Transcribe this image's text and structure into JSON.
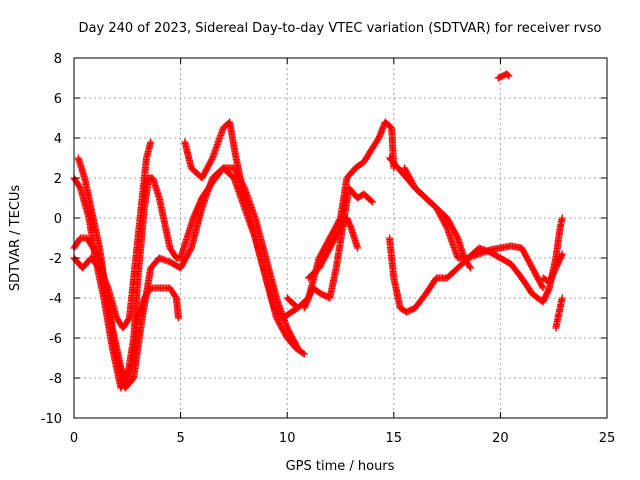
{
  "chart_data": {
    "type": "scatter",
    "title": "Day 240 of 2023, Sidereal Day-to-day VTEC variation (SDTVAR) for receiver rvso",
    "xlabel": "GPS time / hours",
    "ylabel": "SDTVAR / TECUs",
    "xlim": [
      0,
      25
    ],
    "ylim": [
      -10,
      8
    ],
    "xticks": [
      0,
      5,
      10,
      15,
      20,
      25
    ],
    "yticks": [
      -10,
      -8,
      -6,
      -4,
      -2,
      0,
      2,
      4,
      6,
      8
    ],
    "grid": true,
    "legend": "none",
    "marker": "+",
    "series": [
      {
        "name": "track-1",
        "color": "#ff0000",
        "x": [
          0.0,
          0.3,
          0.7,
          1.0,
          1.4,
          1.8,
          2.2,
          2.5,
          2.8,
          3.0,
          3.3,
          3.5,
          3.7,
          4.0,
          4.3,
          4.5,
          4.8,
          5.0,
          5.3,
          5.6,
          6.0,
          6.5,
          7.0,
          7.5,
          8.0,
          8.5,
          9.0,
          9.4,
          9.8,
          10.2,
          10.5
        ],
        "y": [
          2.0,
          1.5,
          0.0,
          -2.0,
          -4.0,
          -6.5,
          -8.5,
          -8.0,
          -6.0,
          -3.0,
          0.5,
          2.0,
          2.0,
          1.0,
          -0.5,
          -1.5,
          -2.0,
          -2.0,
          -1.0,
          0.0,
          1.0,
          1.8,
          2.5,
          2.0,
          0.5,
          -1.0,
          -3.0,
          -4.5,
          -5.0,
          -4.7,
          -4.5
        ]
      },
      {
        "name": "track-2",
        "color": "#ff0000",
        "x": [
          0.2,
          0.5,
          0.8,
          1.2,
          1.6,
          2.0,
          2.4,
          2.8,
          3.2,
          3.6,
          4.0,
          4.5,
          5.0,
          5.5,
          6.0,
          6.5,
          7.0,
          7.5,
          8.0,
          8.5,
          9.0,
          9.5,
          10.0,
          10.5
        ],
        "y": [
          3.0,
          2.0,
          0.5,
          -1.5,
          -4.5,
          -7.0,
          -8.5,
          -8.0,
          -5.0,
          -2.5,
          -2.0,
          -2.2,
          -2.5,
          -1.5,
          0.5,
          2.0,
          2.5,
          2.5,
          1.5,
          0.0,
          -2.0,
          -4.0,
          -5.5,
          -6.5
        ]
      },
      {
        "name": "track-3",
        "color": "#ff0000",
        "x": [
          0.0,
          0.3,
          0.6,
          0.9,
          1.2,
          1.5,
          1.8,
          2.0,
          2.2,
          2.5,
          2.8,
          3.0,
          3.3,
          3.6,
          3.9,
          4.2,
          4.5,
          4.8,
          4.9
        ],
        "y": [
          -1.5,
          -1.0,
          -1.0,
          -1.5,
          -2.0,
          -3.5,
          -5.5,
          -6.5,
          -7.5,
          -8.0,
          -7.0,
          -5.0,
          -4.0,
          -3.5,
          -3.5,
          -3.5,
          -3.5,
          -4.0,
          -5.0
        ]
      },
      {
        "name": "track-4",
        "color": "#ff0000",
        "x": [
          0.0,
          0.4,
          0.8,
          1.2,
          1.6,
          2.0,
          2.3,
          2.6,
          2.8,
          3.0,
          3.2,
          3.4,
          3.6
        ],
        "y": [
          -2.0,
          -2.5,
          -2.0,
          -2.5,
          -3.5,
          -5.0,
          -5.5,
          -5.0,
          -3.0,
          -1.0,
          1.0,
          3.0,
          3.8
        ]
      },
      {
        "name": "track-5",
        "color": "#ff0000",
        "x": [
          5.2,
          5.5,
          6.0,
          6.5,
          7.0,
          7.3,
          7.6,
          8.0,
          8.5,
          9.0,
          9.5,
          10.0,
          10.4,
          10.8
        ],
        "y": [
          3.8,
          2.5,
          2.0,
          3.0,
          4.5,
          4.8,
          3.0,
          1.0,
          -1.0,
          -3.0,
          -5.0,
          -6.0,
          -6.5,
          -6.8
        ]
      },
      {
        "name": "track-6",
        "color": "#ff0000",
        "x": [
          10.0,
          10.5,
          11.0,
          11.5,
          12.0,
          12.5,
          12.8,
          13.2,
          13.6,
          14.0,
          14.3,
          14.6,
          14.9,
          15.0
        ],
        "y": [
          -4.0,
          -4.5,
          -4.0,
          -2.0,
          -1.0,
          0.0,
          2.0,
          2.5,
          2.8,
          3.5,
          4.0,
          4.8,
          4.5,
          2.5
        ]
      },
      {
        "name": "track-7",
        "color": "#ff0000",
        "x": [
          10.8,
          11.2,
          11.6,
          12.0,
          12.3,
          12.6,
          12.9,
          13.3,
          13.6,
          14.0
        ],
        "y": [
          -4.5,
          -3.5,
          -3.8,
          -4.0,
          -2.5,
          -0.5,
          1.5,
          1.0,
          1.2,
          0.8
        ]
      },
      {
        "name": "track-8",
        "color": "#ff0000",
        "x": [
          11.0,
          11.5,
          12.0,
          12.5,
          12.8,
          13.0,
          13.3
        ],
        "y": [
          -3.0,
          -2.5,
          -1.5,
          -0.5,
          0.0,
          -0.5,
          -1.5
        ]
      },
      {
        "name": "track-9",
        "color": "#ff0000",
        "x": [
          14.8,
          15.2,
          15.6,
          16.0,
          16.5,
          17.0,
          17.5,
          18.0,
          18.5,
          19.0,
          19.5,
          20.0,
          20.5,
          21.0,
          21.5,
          22.0,
          22.3,
          22.6,
          22.8,
          22.9
        ],
        "y": [
          3.0,
          2.5,
          2.0,
          1.5,
          1.0,
          0.5,
          -0.5,
          -2.0,
          -2.0,
          -1.5,
          -1.7,
          -2.0,
          -2.3,
          -3.0,
          -3.8,
          -4.2,
          -3.5,
          -2.0,
          -0.5,
          0.0
        ]
      },
      {
        "name": "track-10",
        "color": "#ff0000",
        "x": [
          14.8,
          15.0,
          15.3,
          15.6,
          16.0,
          16.5,
          17.0,
          17.5,
          18.0,
          18.5,
          19.0,
          19.5,
          20.0,
          20.5,
          21.0,
          21.5,
          22.0
        ],
        "y": [
          -1.0,
          -3.0,
          -4.5,
          -4.7,
          -4.5,
          -3.8,
          -3.0,
          -3.0,
          -2.5,
          -2.0,
          -1.8,
          -1.6,
          -1.5,
          -1.4,
          -1.5,
          -2.5,
          -3.5
        ]
      },
      {
        "name": "track-11",
        "color": "#ff0000",
        "x": [
          15.5,
          16.0,
          16.5,
          17.0,
          17.5,
          18.0,
          18.3,
          18.6
        ],
        "y": [
          2.5,
          1.5,
          1.0,
          0.5,
          0.0,
          -1.0,
          -2.0,
          -2.5
        ]
      },
      {
        "name": "track-12",
        "color": "#ff0000",
        "x": [
          22.0,
          22.3,
          22.6,
          22.9
        ],
        "y": [
          -3.0,
          -3.2,
          -2.5,
          -1.8
        ]
      },
      {
        "name": "track-13",
        "color": "#ff0000",
        "x": [
          22.6,
          22.7,
          22.8,
          22.9
        ],
        "y": [
          -5.5,
          -5.0,
          -4.5,
          -4.0
        ]
      },
      {
        "name": "track-14",
        "color": "#ff0000",
        "x": [
          19.9,
          20.1,
          20.3,
          20.4
        ],
        "y": [
          7.0,
          7.1,
          7.2,
          7.1
        ]
      }
    ]
  }
}
